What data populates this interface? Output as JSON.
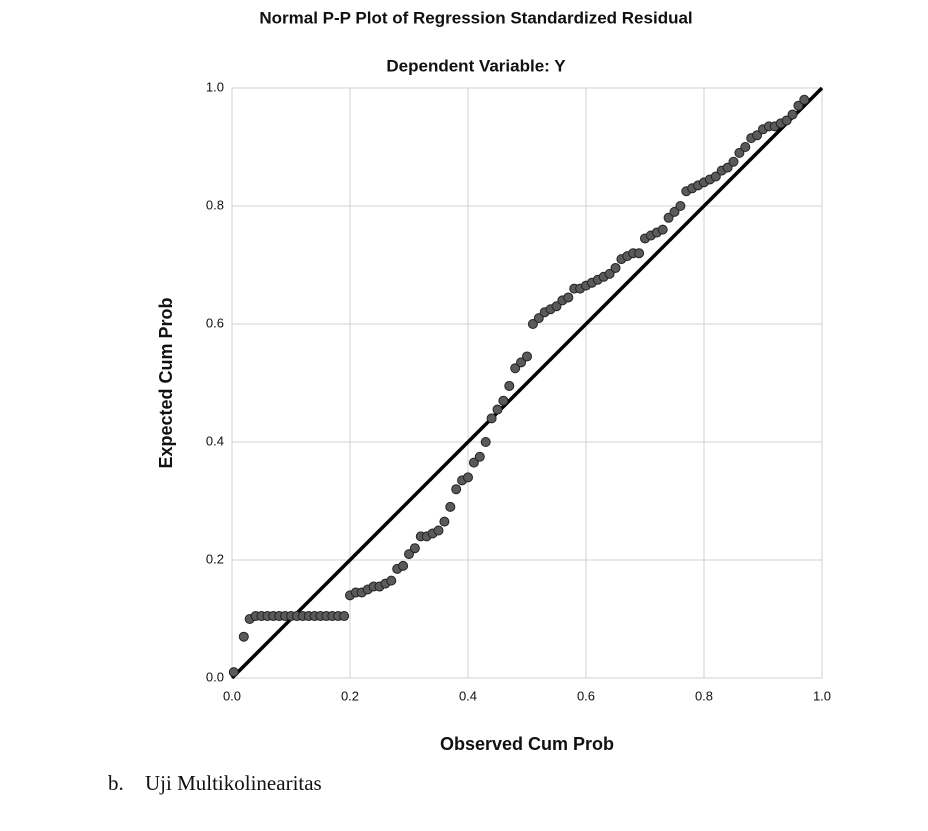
{
  "chart_data": {
    "type": "scatter",
    "title": "Normal P-P Plot of Regression Standardized Residual",
    "subtitle": "Dependent Variable: Y",
    "x_label": "Observed Cum Prob",
    "y_label": "Expected Cum Prob",
    "xlim": [
      0,
      1
    ],
    "ylim": [
      0,
      1
    ],
    "xticks": [
      {
        "value": 0,
        "label": "0.0"
      },
      0.2,
      0.4,
      0.6,
      0.8,
      {
        "value": 1,
        "label": "1.0"
      }
    ],
    "yticks": [
      {
        "value": 0,
        "label": "0.0"
      },
      0.2,
      0.4,
      0.6,
      0.8,
      {
        "value": 1,
        "label": "1.0"
      }
    ],
    "grid": true,
    "color": "#5a5a5a",
    "reference_line": {
      "x": [
        0,
        1
      ],
      "y": [
        0,
        1
      ]
    },
    "x": [
      0.003,
      0.02,
      0.03,
      0.04,
      0.05,
      0.06,
      0.07,
      0.08,
      0.09,
      0.1,
      0.11,
      0.12,
      0.13,
      0.14,
      0.15,
      0.16,
      0.17,
      0.18,
      0.19,
      0.2,
      0.21,
      0.22,
      0.23,
      0.24,
      0.25,
      0.26,
      0.27,
      0.28,
      0.29,
      0.3,
      0.31,
      0.32,
      0.33,
      0.34,
      0.35,
      0.36,
      0.37,
      0.38,
      0.39,
      0.4,
      0.41,
      0.42,
      0.43,
      0.44,
      0.45,
      0.46,
      0.47,
      0.48,
      0.49,
      0.5,
      0.51,
      0.52,
      0.53,
      0.54,
      0.55,
      0.56,
      0.57,
      0.58,
      0.59,
      0.6,
      0.61,
      0.62,
      0.63,
      0.64,
      0.65,
      0.66,
      0.67,
      0.68,
      0.69,
      0.7,
      0.71,
      0.72,
      0.73,
      0.74,
      0.75,
      0.76,
      0.77,
      0.78,
      0.79,
      0.8,
      0.81,
      0.82,
      0.83,
      0.84,
      0.85,
      0.86,
      0.87,
      0.88,
      0.89,
      0.9,
      0.91,
      0.92,
      0.93,
      0.94,
      0.95,
      0.96,
      0.97
    ],
    "values": [
      0.01,
      0.07,
      0.1,
      0.105,
      0.105,
      0.105,
      0.105,
      0.105,
      0.105,
      0.105,
      0.105,
      0.105,
      0.105,
      0.105,
      0.105,
      0.105,
      0.105,
      0.105,
      0.105,
      0.14,
      0.145,
      0.145,
      0.15,
      0.155,
      0.155,
      0.16,
      0.165,
      0.185,
      0.19,
      0.21,
      0.22,
      0.24,
      0.24,
      0.245,
      0.25,
      0.265,
      0.29,
      0.32,
      0.335,
      0.34,
      0.365,
      0.375,
      0.4,
      0.44,
      0.455,
      0.47,
      0.495,
      0.525,
      0.535,
      0.545,
      0.6,
      0.61,
      0.62,
      0.625,
      0.63,
      0.64,
      0.645,
      0.66,
      0.66,
      0.665,
      0.67,
      0.675,
      0.68,
      0.685,
      0.695,
      0.71,
      0.715,
      0.72,
      0.72,
      0.745,
      0.75,
      0.755,
      0.76,
      0.78,
      0.79,
      0.8,
      0.825,
      0.83,
      0.835,
      0.84,
      0.845,
      0.85,
      0.86,
      0.865,
      0.875,
      0.89,
      0.9,
      0.915,
      0.92,
      0.93,
      0.935,
      0.935,
      0.94,
      0.945,
      0.955,
      0.97,
      0.98
    ]
  },
  "document": {
    "item_marker": "b.",
    "heading": "Uji Multikolinearitas"
  }
}
